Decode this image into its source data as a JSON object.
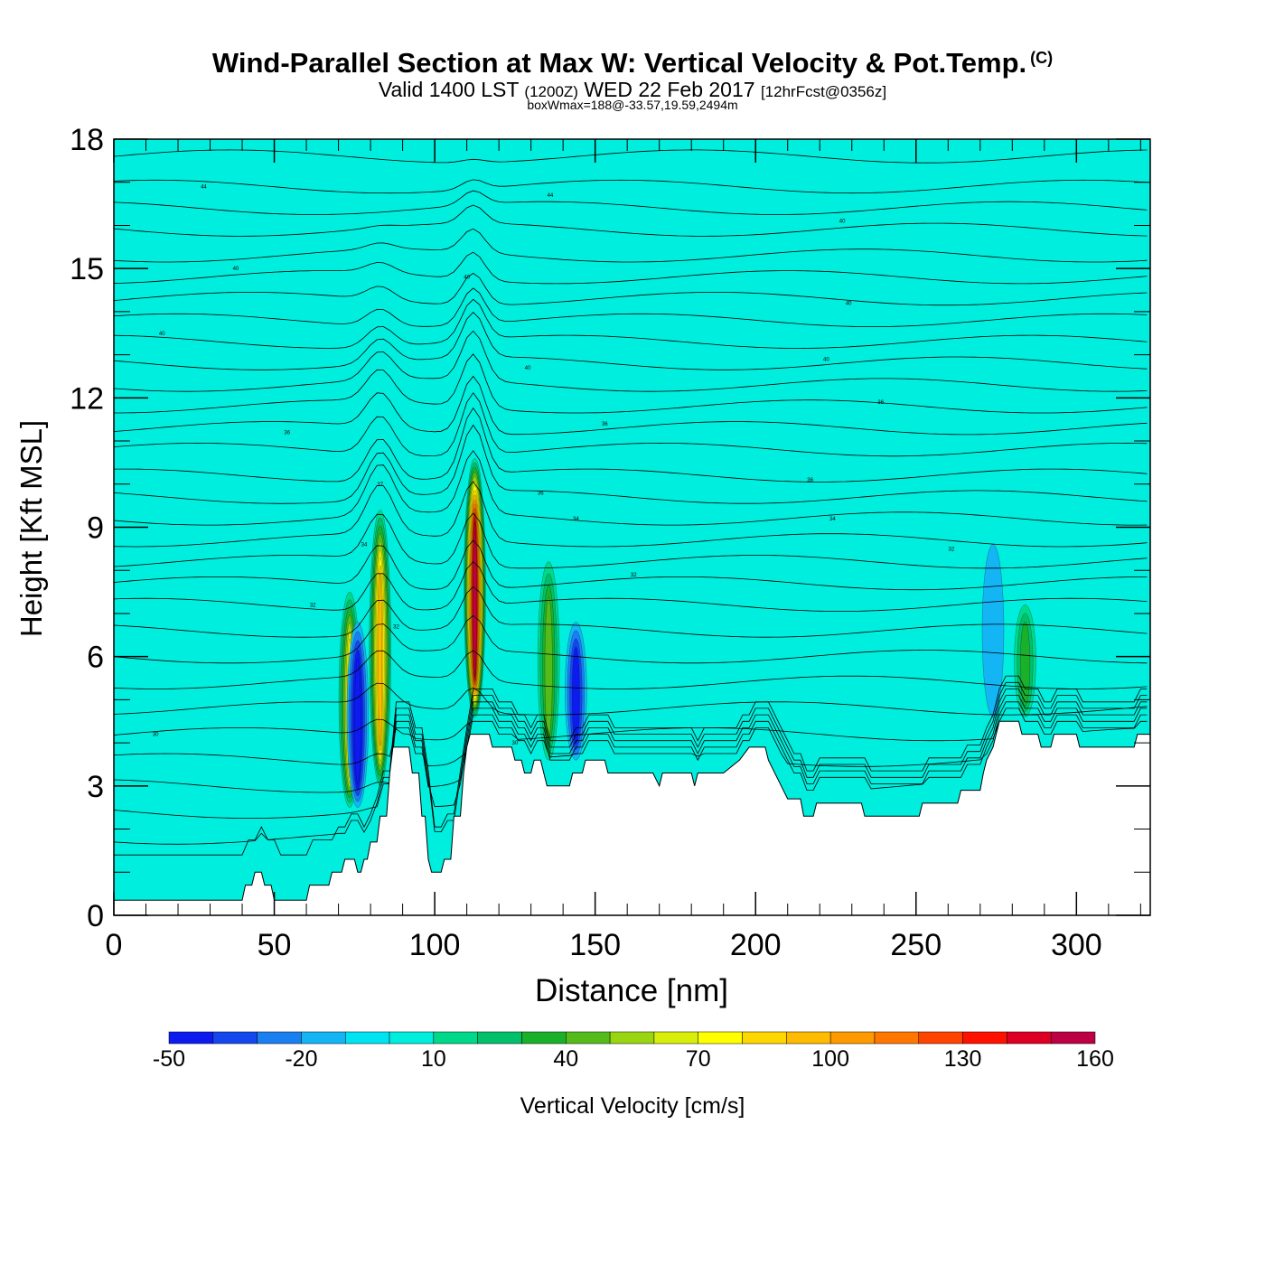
{
  "header": {
    "title": "Wind-Parallel Section at Max W: Vertical Velocity & Pot.Temp.",
    "copyright": "(C)",
    "subtitle_main": "Valid 1400 LST",
    "subtitle_utc": "(1200Z)",
    "subtitle_date": "WED 22 Feb 2017",
    "subtitle_fcst": "[12hrFcst@0356z]",
    "subtitle2": "boxWmax=188@-33.57,19.59,2494m"
  },
  "chart_data": {
    "type": "heatmap",
    "xlabel": "Distance [nm]",
    "ylabel": "Height [Kft MSL]",
    "xlim": [
      0,
      323
    ],
    "ylim": [
      0,
      18
    ],
    "x_ticks": [
      0,
      50,
      100,
      150,
      200,
      250,
      300
    ],
    "y_ticks": [
      0,
      3,
      6,
      9,
      12,
      15,
      18
    ],
    "background_value_color": "#00eedd",
    "colorbar": {
      "label": "Vertical Velocity [cm/s]",
      "tick_labels": [
        "-50",
        "-20",
        "10",
        "40",
        "70",
        "100",
        "130",
        "160"
      ],
      "levels": [
        -50,
        -40,
        -30,
        -20,
        -10,
        0,
        10,
        20,
        30,
        40,
        50,
        60,
        70,
        80,
        90,
        100,
        110,
        120,
        130,
        140,
        150,
        160
      ],
      "colors": [
        "#0d1bf0",
        "#1448ee",
        "#1a7ff0",
        "#13b5f5",
        "#00e3f0",
        "#00eedd",
        "#00d88a",
        "#00c06a",
        "#1bb02a",
        "#55bb1a",
        "#99d611",
        "#d8ee0a",
        "#ffff00",
        "#ffd700",
        "#ffbb00",
        "#ff9900",
        "#ff7700",
        "#ff4400",
        "#ff1100",
        "#dd0022",
        "#bb0044"
      ]
    },
    "terrain": [
      [
        0,
        0.35
      ],
      [
        40,
        0.35
      ],
      [
        41,
        0.7
      ],
      [
        43,
        0.7
      ],
      [
        44,
        1
      ],
      [
        46,
        1
      ],
      [
        47,
        0.7
      ],
      [
        49,
        0.7
      ],
      [
        50,
        0.35
      ],
      [
        60,
        0.35
      ],
      [
        61,
        0.7
      ],
      [
        67,
        0.7
      ],
      [
        68,
        1
      ],
      [
        71,
        1
      ],
      [
        72,
        1.3
      ],
      [
        75,
        1.3
      ],
      [
        76,
        1
      ],
      [
        77,
        1
      ],
      [
        78,
        1.3
      ],
      [
        79,
        1.3
      ],
      [
        80,
        1.7
      ],
      [
        82,
        1.7
      ],
      [
        83,
        2.3
      ],
      [
        85,
        2.3
      ],
      [
        86,
        3.3
      ],
      [
        87,
        3.9
      ],
      [
        92,
        3.9
      ],
      [
        93,
        3.3
      ],
      [
        95,
        3.3
      ],
      [
        96,
        2.3
      ],
      [
        97,
        2.3
      ],
      [
        98,
        1.3
      ],
      [
        99,
        1
      ],
      [
        102,
        1
      ],
      [
        103,
        1.3
      ],
      [
        105,
        1.3
      ],
      [
        106,
        2.3
      ],
      [
        108,
        2.3
      ],
      [
        109,
        3.3
      ],
      [
        110,
        3.9
      ],
      [
        111,
        4.2
      ],
      [
        117,
        4.2
      ],
      [
        118,
        3.9
      ],
      [
        124,
        3.9
      ],
      [
        125,
        3.6
      ],
      [
        127,
        3.6
      ],
      [
        128,
        3.3
      ],
      [
        130,
        3.3
      ],
      [
        131,
        3.6
      ],
      [
        133,
        3.6
      ],
      [
        134,
        3.3
      ],
      [
        135,
        3.0
      ],
      [
        142,
        3.0
      ],
      [
        143,
        3.3
      ],
      [
        146,
        3.3
      ],
      [
        147,
        3.6
      ],
      [
        153,
        3.6
      ],
      [
        154,
        3.3
      ],
      [
        168,
        3.3
      ],
      [
        170,
        3.0
      ],
      [
        171,
        3.3
      ],
      [
        180,
        3.3
      ],
      [
        181,
        3.0
      ],
      [
        182,
        3.3
      ],
      [
        190,
        3.3
      ],
      [
        195,
        3.6
      ],
      [
        198,
        3.9
      ],
      [
        203,
        3.9
      ],
      [
        204,
        3.6
      ],
      [
        206,
        3.3
      ],
      [
        208,
        3.0
      ],
      [
        210,
        2.7
      ],
      [
        214,
        2.7
      ],
      [
        215,
        2.3
      ],
      [
        218,
        2.3
      ],
      [
        219,
        2.6
      ],
      [
        233,
        2.6
      ],
      [
        234,
        2.3
      ],
      [
        251,
        2.3
      ],
      [
        252,
        2.6
      ],
      [
        263,
        2.6
      ],
      [
        264,
        2.9
      ],
      [
        270,
        2.9
      ],
      [
        271,
        3.3
      ],
      [
        272,
        3.6
      ],
      [
        274,
        3.9
      ],
      [
        275,
        4.2
      ],
      [
        276,
        4.5
      ],
      [
        282,
        4.5
      ],
      [
        283,
        4.2
      ],
      [
        288,
        4.2
      ],
      [
        289,
        3.9
      ],
      [
        292,
        3.9
      ],
      [
        293,
        4.2
      ],
      [
        300,
        4.2
      ],
      [
        301,
        3.9
      ],
      [
        318,
        3.9
      ],
      [
        319,
        4.2
      ],
      [
        323,
        4.2
      ]
    ],
    "updraft_cores": [
      {
        "x": 73.5,
        "y_bottom": 2.5,
        "y_top": 7.5,
        "w_max": 70
      },
      {
        "x": 83,
        "y_bottom": 3.0,
        "y_top": 9.4,
        "w_max": 90
      },
      {
        "x": 112.5,
        "y_bottom": 4.6,
        "y_top": 10.6,
        "w_max": 150
      },
      {
        "x": 135.5,
        "y_bottom": 3.6,
        "y_top": 8.2,
        "w_max": 40
      },
      {
        "x": 284,
        "y_bottom": 4.6,
        "y_top": 7.2,
        "w_max": 30
      }
    ],
    "downdraft_cores": [
      {
        "x": 76,
        "y_bottom": 2.5,
        "y_top": 6.8,
        "w_min": -50
      },
      {
        "x": 144,
        "y_bottom": 3.6,
        "y_top": 6.8,
        "w_min": -40
      },
      {
        "x": 274,
        "y_bottom": 4.6,
        "y_top": 8.6,
        "w_min": -10
      }
    ],
    "theta_contour_labels": [
      {
        "x": 28,
        "y": 16.9,
        "text": "44"
      },
      {
        "x": 136,
        "y": 16.7,
        "text": "44"
      },
      {
        "x": 227,
        "y": 16.1,
        "text": "40"
      },
      {
        "x": 38,
        "y": 15.0,
        "text": "40"
      },
      {
        "x": 110,
        "y": 14.8,
        "text": "40"
      },
      {
        "x": 229,
        "y": 14.2,
        "text": "40"
      },
      {
        "x": 15,
        "y": 13.5,
        "text": "40"
      },
      {
        "x": 129,
        "y": 12.7,
        "text": "40"
      },
      {
        "x": 222,
        "y": 12.9,
        "text": "40"
      },
      {
        "x": 239,
        "y": 11.9,
        "text": "36"
      },
      {
        "x": 54,
        "y": 11.2,
        "text": "36"
      },
      {
        "x": 153,
        "y": 11.4,
        "text": "36"
      },
      {
        "x": 217,
        "y": 10.1,
        "text": "36"
      },
      {
        "x": 83,
        "y": 10.0,
        "text": "37"
      },
      {
        "x": 133,
        "y": 9.8,
        "text": "36"
      },
      {
        "x": 144,
        "y": 9.2,
        "text": "34"
      },
      {
        "x": 224,
        "y": 9.2,
        "text": "34"
      },
      {
        "x": 78,
        "y": 8.6,
        "text": "34"
      },
      {
        "x": 261,
        "y": 8.5,
        "text": "32"
      },
      {
        "x": 162,
        "y": 7.9,
        "text": "32"
      },
      {
        "x": 62,
        "y": 7.2,
        "text": "32"
      },
      {
        "x": 88,
        "y": 6.7,
        "text": "32"
      },
      {
        "x": 125,
        "y": 4.0,
        "text": "30"
      },
      {
        "x": 13,
        "y": 4.2,
        "text": "30"
      }
    ]
  }
}
